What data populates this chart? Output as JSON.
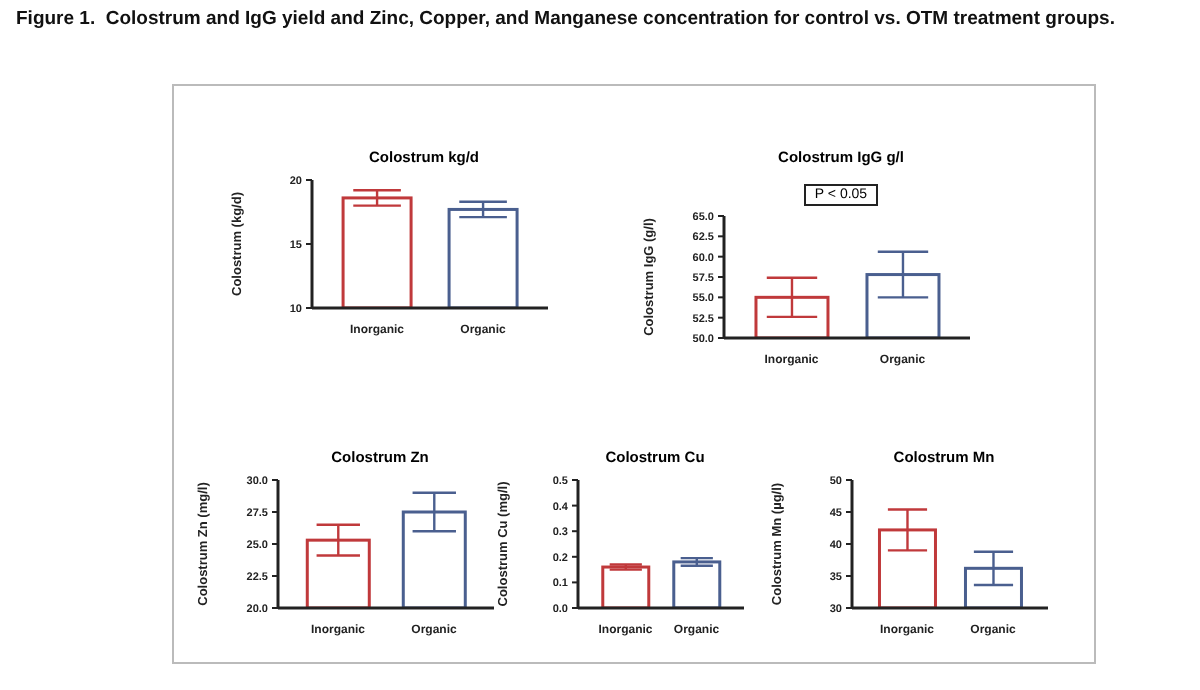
{
  "chart_data": [
    {
      "type": "bar",
      "annotations": [
        "Figure 1.  Colostrum and IgG yield and Zinc, Copper, and Manganese concentration for control vs. OTM treatment groups."
      ],
      "title": "Colostrum kg/d",
      "ylabel": "Colostrum (kg/d)",
      "categories": [
        "Inorganic",
        "Organic"
      ],
      "values": [
        18.6,
        17.7
      ],
      "errors": [
        0.6,
        0.6
      ],
      "colors": [
        "#c0393b",
        "#4a5f8f"
      ],
      "ylim": [
        10,
        20
      ],
      "yticks": [
        10,
        15,
        20
      ]
    },
    {
      "type": "bar",
      "title": "Colostrum IgG g/l",
      "ylabel": "Colostrum IgG (g/l)",
      "categories": [
        "Inorganic",
        "Organic"
      ],
      "values": [
        55.0,
        57.8
      ],
      "errors": [
        2.4,
        2.8
      ],
      "colors": [
        "#c0393b",
        "#4a5f8f"
      ],
      "ylim": [
        50,
        65
      ],
      "yticks": [
        {
          "value": 50,
          "label": "50.0"
        },
        {
          "value": 52.5,
          "label": "52.5"
        },
        {
          "value": 55,
          "label": "55.0"
        },
        {
          "value": 57.5,
          "label": "57.5"
        },
        {
          "value": 60,
          "label": "60.0"
        },
        {
          "value": 62.5,
          "label": "62.5"
        },
        {
          "value": 65,
          "label": "65.0"
        }
      ],
      "annotations": [
        "P < 0.05"
      ]
    },
    {
      "type": "bar",
      "title": "Colostrum Zn",
      "ylabel": "Colostrum Zn (mg/l)",
      "categories": [
        "Inorganic",
        "Organic"
      ],
      "values": [
        25.3,
        27.5
      ],
      "errors": [
        1.2,
        1.5
      ],
      "colors": [
        "#c0393b",
        "#4a5f8f"
      ],
      "ylim": [
        20,
        30
      ],
      "yticks": [
        {
          "value": 20,
          "label": "20.0"
        },
        {
          "value": 22.5,
          "label": "22.5"
        },
        {
          "value": 25,
          "label": "25.0"
        },
        {
          "value": 27.5,
          "label": "27.5"
        },
        {
          "value": 30,
          "label": "30.0"
        }
      ]
    },
    {
      "type": "bar",
      "title": "Colostrum Cu",
      "ylabel": "Colostrum Cu (mg/l)",
      "categories": [
        "Inorganic",
        "Organic"
      ],
      "values": [
        0.16,
        0.18
      ],
      "errors": [
        0.01,
        0.015
      ],
      "colors": [
        "#c0393b",
        "#4a5f8f"
      ],
      "ylim": [
        0,
        0.5
      ],
      "yticks": [
        {
          "value": 0,
          "label": "0.0"
        },
        0.1,
        0.2,
        0.3,
        0.4,
        0.5
      ]
    },
    {
      "type": "bar",
      "title": "Colostrum Mn",
      "ylabel": "Colostrum Mn (µg/l)",
      "categories": [
        "Inorganic",
        "Organic"
      ],
      "values": [
        42.2,
        36.2
      ],
      "errors": [
        3.2,
        2.6
      ],
      "colors": [
        "#c0393b",
        "#4a5f8f"
      ],
      "ylim": [
        30,
        50
      ],
      "yticks": [
        30,
        35,
        40,
        45,
        50
      ]
    }
  ]
}
